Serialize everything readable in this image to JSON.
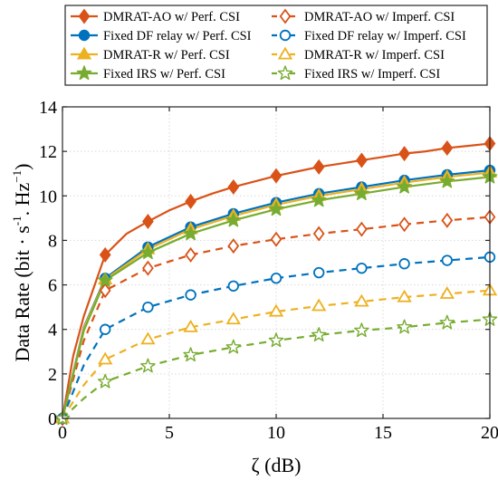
{
  "chart_data": {
    "type": "line",
    "xlabel": "ζ (dB)",
    "ylabel_parts": {
      "main": "Data Rate (bit · s",
      "sup1": "-1",
      "mid": ". Hz",
      "sup2": "−1",
      "end": ")"
    },
    "xlim": [
      0,
      20
    ],
    "ylim": [
      0,
      14
    ],
    "xticks": [
      "0",
      "5",
      "10",
      "15",
      "20"
    ],
    "yticks": [
      "0",
      "2",
      "4",
      "6",
      "8",
      "10",
      "12",
      "14"
    ],
    "grid": true,
    "legend_position": "top",
    "series": [
      {
        "name": "DMRAT-AO w/ Perf. CSI",
        "color": "#d95319",
        "style": "solid",
        "marker": "diamond",
        "filled": true,
        "x": [
          0,
          0.5,
          1,
          2,
          3,
          4,
          5,
          6,
          7,
          8,
          9,
          10,
          11,
          12,
          13,
          14,
          15,
          16,
          17,
          18,
          19,
          20
        ],
        "y": [
          0,
          2.8,
          4.6,
          7.35,
          8.3,
          8.85,
          9.35,
          9.75,
          10.1,
          10.4,
          10.65,
          10.9,
          11.1,
          11.3,
          11.45,
          11.6,
          11.75,
          11.9,
          12.0,
          12.15,
          12.25,
          12.35
        ]
      },
      {
        "name": "DMRAT-AO w/ Imperf. CSI",
        "color": "#d95319",
        "style": "dashed",
        "marker": "diamond",
        "filled": false,
        "x": [
          0,
          1,
          2,
          4,
          6,
          8,
          10,
          12,
          14,
          16,
          18,
          20
        ],
        "y": [
          0,
          3.5,
          5.75,
          6.75,
          7.35,
          7.75,
          8.05,
          8.3,
          8.5,
          8.72,
          8.9,
          9.05
        ]
      },
      {
        "name": "Fixed DF relay w/ Perf. CSI",
        "color": "#0072bd",
        "style": "solid",
        "marker": "circle",
        "filled": true,
        "x": [
          0,
          1,
          2,
          4,
          6,
          8,
          10,
          12,
          14,
          16,
          18,
          20
        ],
        "y": [
          0,
          4.1,
          6.3,
          7.7,
          8.6,
          9.2,
          9.7,
          10.1,
          10.4,
          10.7,
          10.95,
          11.15
        ]
      },
      {
        "name": "Fixed DF relay w/ Imperf. CSI",
        "color": "#0072bd",
        "style": "dashed",
        "marker": "circle",
        "filled": false,
        "x": [
          0,
          1,
          2,
          4,
          6,
          8,
          10,
          12,
          14,
          16,
          18,
          20
        ],
        "y": [
          0,
          2.4,
          4.0,
          5.0,
          5.55,
          5.95,
          6.3,
          6.55,
          6.75,
          6.95,
          7.1,
          7.25
        ]
      },
      {
        "name": "DMRAT-R w/ Perf. CSI",
        "color": "#edb120",
        "style": "solid",
        "marker": "triangle",
        "filled": true,
        "x": [
          0,
          1,
          2,
          4,
          6,
          8,
          10,
          12,
          14,
          16,
          18,
          20
        ],
        "y": [
          0,
          4.05,
          6.25,
          7.6,
          8.5,
          9.1,
          9.6,
          10.0,
          10.3,
          10.6,
          10.85,
          11.05
        ]
      },
      {
        "name": "DMRAT-R w/ Imperf. CSI",
        "color": "#edb120",
        "style": "dashed",
        "marker": "triangle",
        "filled": false,
        "x": [
          0,
          1,
          2,
          4,
          6,
          8,
          10,
          12,
          14,
          16,
          18,
          20
        ],
        "y": [
          0,
          1.5,
          2.65,
          3.55,
          4.1,
          4.45,
          4.8,
          5.05,
          5.25,
          5.45,
          5.6,
          5.75
        ]
      },
      {
        "name": "Fixed IRS w/ Perf. CSI",
        "color": "#77ac30",
        "style": "solid",
        "marker": "star",
        "filled": true,
        "x": [
          0,
          1,
          2,
          4,
          6,
          8,
          10,
          12,
          14,
          16,
          18,
          20
        ],
        "y": [
          0,
          3.95,
          6.2,
          7.45,
          8.3,
          8.9,
          9.4,
          9.8,
          10.1,
          10.4,
          10.65,
          10.85
        ]
      },
      {
        "name": "Fixed IRS w/ Imperf. CSI",
        "color": "#77ac30",
        "style": "dashed",
        "marker": "star",
        "filled": false,
        "x": [
          0,
          1,
          2,
          4,
          6,
          8,
          10,
          12,
          14,
          16,
          18,
          20
        ],
        "y": [
          0,
          0.9,
          1.65,
          2.35,
          2.85,
          3.2,
          3.5,
          3.75,
          3.95,
          4.1,
          4.3,
          4.45
        ]
      }
    ]
  }
}
